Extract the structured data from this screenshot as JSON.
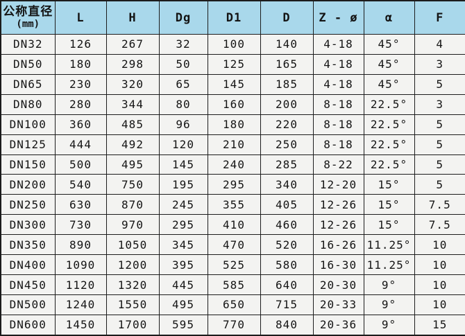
{
  "table": {
    "title": "flange-dimension-table",
    "columns": [
      {
        "label": "公称直径",
        "sub": "(mm)"
      },
      {
        "label": "L"
      },
      {
        "label": "H"
      },
      {
        "label": "Dg"
      },
      {
        "label": "D1"
      },
      {
        "label": "D"
      },
      {
        "label": "Z - ø"
      },
      {
        "label": "α"
      },
      {
        "label": "F"
      }
    ],
    "rows": [
      [
        "DN32",
        "126",
        "267",
        "32",
        "100",
        "140",
        "4-18",
        "45°",
        "4"
      ],
      [
        "DN50",
        "180",
        "298",
        "50",
        "125",
        "165",
        "4-18",
        "45°",
        "3"
      ],
      [
        "DN65",
        "230",
        "320",
        "65",
        "145",
        "185",
        "4-18",
        "45°",
        "5"
      ],
      [
        "DN80",
        "280",
        "344",
        "80",
        "160",
        "200",
        "8-18",
        "22.5°",
        "3"
      ],
      [
        "DN100",
        "360",
        "485",
        "96",
        "180",
        "220",
        "8-18",
        "22.5°",
        "5"
      ],
      [
        "DN125",
        "444",
        "492",
        "120",
        "210",
        "250",
        "8-18",
        "22.5°",
        "5"
      ],
      [
        "DN150",
        "500",
        "495",
        "145",
        "240",
        "285",
        "8-22",
        "22.5°",
        "5"
      ],
      [
        "DN200",
        "540",
        "750",
        "195",
        "295",
        "340",
        "12-20",
        "15°",
        "5"
      ],
      [
        "DN250",
        "630",
        "870",
        "245",
        "355",
        "405",
        "12-26",
        "15°",
        "7.5"
      ],
      [
        "DN300",
        "730",
        "970",
        "295",
        "410",
        "460",
        "12-26",
        "15°",
        "7.5"
      ],
      [
        "DN350",
        "890",
        "1050",
        "345",
        "470",
        "520",
        "16-26",
        "11.25°",
        "10"
      ],
      [
        "DN400",
        "1090",
        "1200",
        "395",
        "525",
        "580",
        "16-30",
        "11.25°",
        "10"
      ],
      [
        "DN450",
        "1120",
        "1320",
        "445",
        "585",
        "640",
        "20-30",
        "9°",
        "10"
      ],
      [
        "DN500",
        "1240",
        "1550",
        "495",
        "650",
        "715",
        "20-33",
        "9°",
        "10"
      ],
      [
        "DN600",
        "1450",
        "1700",
        "595",
        "770",
        "840",
        "20-36",
        "9°",
        "15"
      ]
    ]
  },
  "colors": {
    "header_bg": "#a9d8eb",
    "cell_bg": "#f3f3f1",
    "border": "#1c1c1c",
    "text": "#141414"
  }
}
